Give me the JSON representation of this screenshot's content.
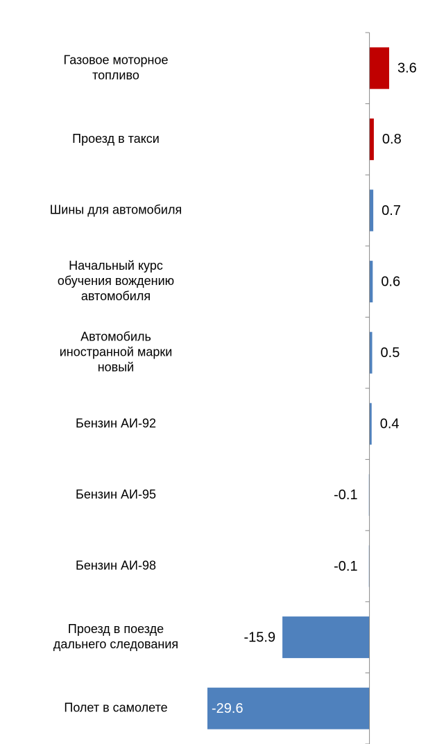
{
  "chart_data": {
    "type": "barh",
    "categories": [
      "Газовое моторное\nтопливо",
      "Проезд в такси",
      "Шины для автомобиля",
      "Начальный курс\nобучения вождению\nавтомобиля",
      "Автомобиль\nиностранной марки\nновый",
      "Бензин АИ-92",
      "Бензин АИ-95",
      "Бензин  АИ-98",
      "Проезд в поезде\nдальнего следования",
      "Полет в самолете"
    ],
    "values": [
      3.6,
      0.8,
      0.7,
      0.6,
      0.5,
      0.4,
      -0.1,
      -0.1,
      -15.9,
      -29.6
    ],
    "colors": [
      "#c00000",
      "#c00000",
      "#4f81bd",
      "#4f81bd",
      "#4f81bd",
      "#4f81bd",
      "#4f81bd",
      "#4f81bd",
      "#4f81bd",
      "#4f81bd"
    ],
    "xlim": [
      -29.6,
      3.6
    ]
  }
}
